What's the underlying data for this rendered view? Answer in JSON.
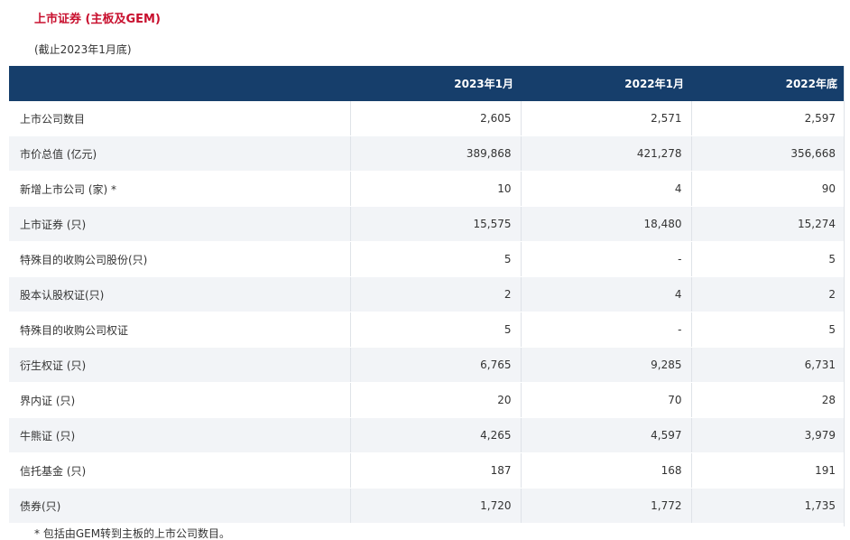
{
  "section": {
    "title": "上市证券 (主板及GEM)",
    "as_of": "(截止2023年1月底)"
  },
  "table": {
    "columns": [
      "",
      "2023年1月",
      "2022年1月",
      "2022年底"
    ],
    "rows": [
      {
        "label": "上市公司数目",
        "values": [
          "2,605",
          "2,571",
          "2,597"
        ]
      },
      {
        "label": "市价总值 (亿元)",
        "values": [
          "389,868",
          "421,278",
          "356,668"
        ]
      },
      {
        "label": "新增上市公司 (家) *",
        "values": [
          "10",
          "4",
          "90"
        ]
      },
      {
        "label": "上市证券 (只)",
        "values": [
          "15,575",
          "18,480",
          "15,274"
        ]
      },
      {
        "label": "特殊目的收购公司股份(只)",
        "values": [
          "5",
          "-",
          "5"
        ]
      },
      {
        "label": "股本认股权证(只)",
        "values": [
          "2",
          "4",
          "2"
        ]
      },
      {
        "label": "特殊目的收购公司权证",
        "values": [
          "5",
          "-",
          "5"
        ]
      },
      {
        "label": "衍生权证 (只)",
        "values": [
          "6,765",
          "9,285",
          "6,731"
        ]
      },
      {
        "label": "界内证 (只)",
        "values": [
          "20",
          "70",
          "28"
        ]
      },
      {
        "label": "牛熊证 (只)",
        "values": [
          "4,265",
          "4,597",
          "3,979"
        ]
      },
      {
        "label": "信托基金 (只)",
        "values": [
          "187",
          "168",
          "191"
        ]
      },
      {
        "label": "债券(只)",
        "values": [
          "1,720",
          "1,772",
          "1,735"
        ]
      }
    ]
  },
  "footnote": "* 包括由GEM转到主板的上市公司数目。",
  "colors": {
    "accent_title": "#c8102e",
    "header_bg": "#163e6b",
    "stripe_bg": "#f2f4f7"
  }
}
